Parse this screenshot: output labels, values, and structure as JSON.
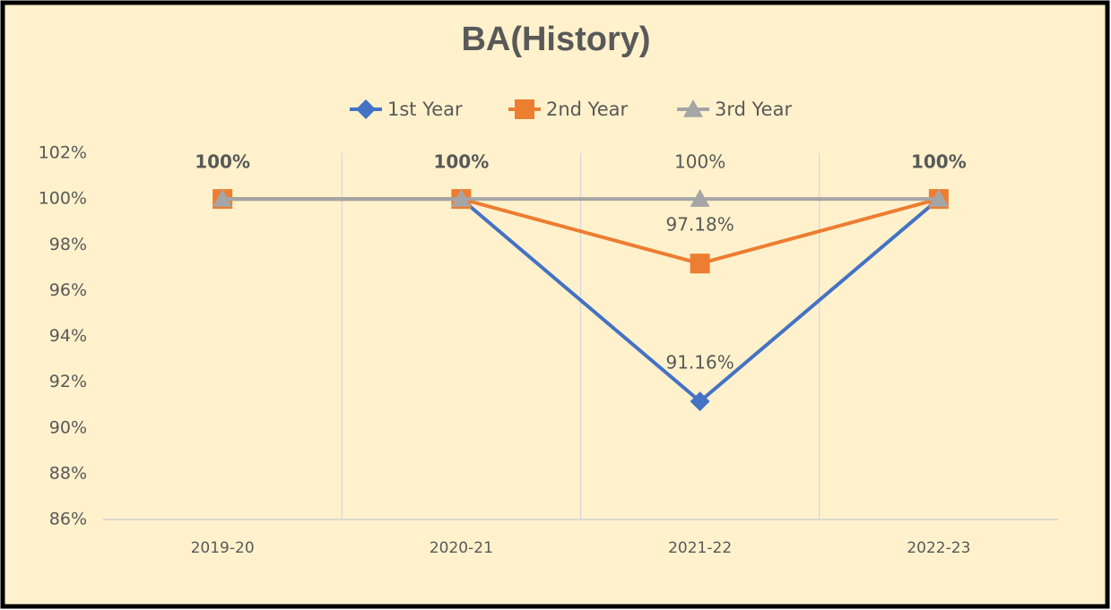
{
  "chart_data": {
    "type": "line",
    "title": "BA(History)",
    "categories": [
      "2019-20",
      "2020-21",
      "2021-22",
      "2022-23"
    ],
    "series": [
      {
        "name": "1st Year",
        "color": "#4472c4",
        "marker": "diamond",
        "values": [
          100,
          100,
          91.16,
          100
        ],
        "value_labels": [
          null,
          null,
          "91.16%",
          null
        ]
      },
      {
        "name": "2nd Year",
        "color": "#ed7d31",
        "marker": "square",
        "values": [
          100,
          100,
          97.18,
          100
        ],
        "value_labels": [
          null,
          null,
          "97.18%",
          null
        ]
      },
      {
        "name": "3rd Year",
        "color": "#a5a5a5",
        "marker": "triangle",
        "values": [
          100,
          100,
          100,
          100
        ],
        "value_labels": [
          "100%",
          "100%",
          "100%",
          "100%"
        ]
      }
    ],
    "ylim": [
      86,
      102
    ],
    "yticks": [
      {
        "value": 86,
        "label": "86%"
      },
      {
        "value": 88,
        "label": "88%"
      },
      {
        "value": 90,
        "label": "90%"
      },
      {
        "value": 92,
        "label": "92%"
      },
      {
        "value": 94,
        "label": "94%"
      },
      {
        "value": 96,
        "label": "96%"
      },
      {
        "value": 98,
        "label": "98%"
      },
      {
        "value": 100,
        "label": "100%"
      },
      {
        "value": 102,
        "label": "102%"
      }
    ],
    "legend": "top"
  }
}
